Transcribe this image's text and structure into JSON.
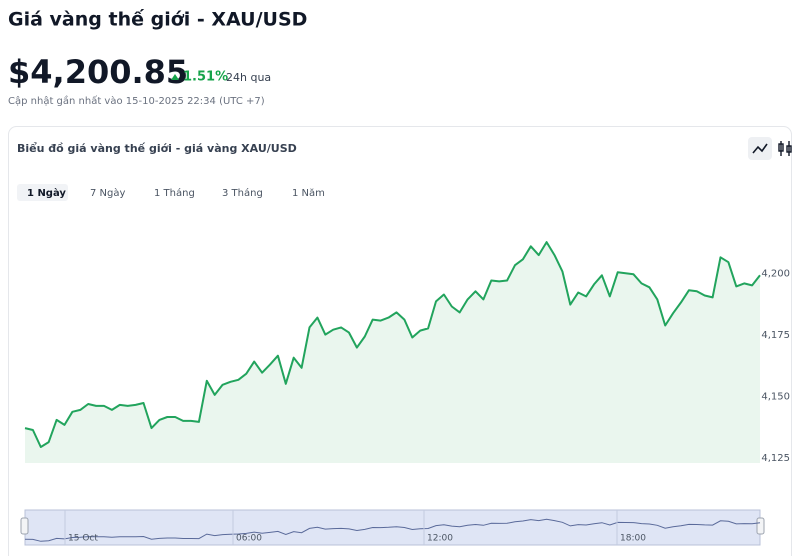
{
  "header": {
    "title": "Giá vàng thế giới - XAU/USD",
    "price": "$4,200.85",
    "change": "1.51%",
    "period": "24h qua",
    "updated": "Cập nhật gần nhất vào 15-10-2025 22:34 (UTC +7)"
  },
  "tabs": [
    "1 Ngày",
    "7 Ngày",
    "1 Tháng",
    "3 Tháng",
    "1 Năm"
  ],
  "chart_data": {
    "type": "area",
    "title": "Biểu đồ giá vàng thế giới - giá vàng XAU/USD",
    "color": "#22a45d",
    "fill": "#eaf6ee",
    "values": [
      4137.2,
      4136.4,
      4129.5,
      4131.5,
      4140.5,
      4138.5,
      4143.8,
      4144.6,
      4147,
      4146.2,
      4146.2,
      4144.6,
      4146.6,
      4146.2,
      4146.6,
      4147.4,
      4137.2,
      4140.5,
      4141.7,
      4141.7,
      4140.1,
      4140.1,
      4139.7,
      4156.4,
      4150.7,
      4154.8,
      4156,
      4156.8,
      4159.3,
      4164.2,
      4159.7,
      4163,
      4166.6,
      4155.2,
      4165.8,
      4161.7,
      4178.1,
      4182.1,
      4175.2,
      4177.2,
      4178.1,
      4176,
      4169.9,
      4174.4,
      4181.3,
      4180.9,
      4182.1,
      4184.2,
      4181.3,
      4174,
      4176.8,
      4177.7,
      4188.7,
      4191.5,
      4186.6,
      4184.2,
      4189.5,
      4192.8,
      4189.5,
      4197.2,
      4196.8,
      4197.2,
      4203.4,
      4205.8,
      4211.1,
      4207.5,
      4212.8,
      4207.5,
      4200.9,
      4187.4,
      4192.3,
      4190.7,
      4195.6,
      4199.3,
      4190.7,
      4200.5,
      4200.1,
      4199.7,
      4196,
      4194.4,
      4189.5,
      4178.9,
      4183.9,
      4188.3,
      4193.2,
      4192.8,
      4191.1,
      4190.3,
      4206.6,
      4204.6,
      4194.8,
      4196,
      4195.2,
      4199.3
    ],
    "ylim": [
      4123,
      4236
    ],
    "yticks": [
      {
        "value": 4125,
        "label": "4,125"
      },
      {
        "value": 4150,
        "label": "4,150"
      },
      {
        "value": 4175,
        "label": "4,175"
      },
      {
        "value": 4200,
        "label": "4,200"
      }
    ],
    "navigator_labels": [
      "15 Oct",
      "06:00",
      "12:00",
      "18:00"
    ]
  }
}
